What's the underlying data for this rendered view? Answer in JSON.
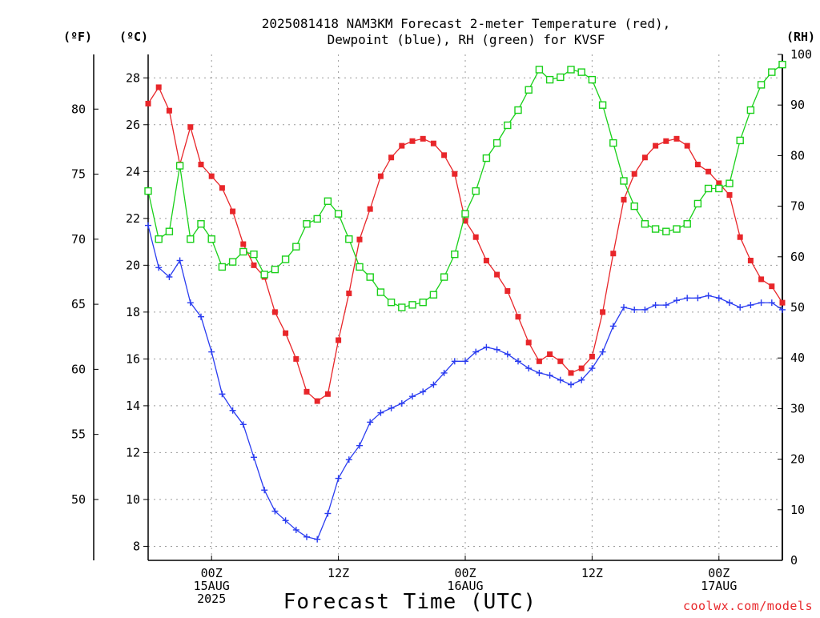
{
  "chart_data": {
    "type": "line",
    "title_lines": [
      "2025081418 NAM3KM Forecast 2-meter Temperature (red),",
      "Dewpoint (blue), RH (green) for KVSF"
    ],
    "xlabel": "Forecast Time (UTC)",
    "left_outer_unit": "(ºF)",
    "left_inner_unit": "(ºC)",
    "right_unit": "(RH)",
    "credit": "coolwx.com/models",
    "x_axis": {
      "range_hours": [
        -6,
        54
      ],
      "ticks": [
        {
          "hour": 0,
          "lines": [
            "00Z",
            "15AUG",
            "2025"
          ]
        },
        {
          "hour": 12,
          "lines": [
            "12Z"
          ]
        },
        {
          "hour": 24,
          "lines": [
            "00Z",
            "16AUG"
          ]
        },
        {
          "hour": 36,
          "lines": [
            "12Z"
          ]
        },
        {
          "hour": 48,
          "lines": [
            "00Z",
            "17AUG"
          ]
        }
      ]
    },
    "y_celsius": {
      "range": [
        7.4,
        29.0
      ],
      "ticks": [
        8,
        10,
        12,
        14,
        16,
        18,
        20,
        22,
        24,
        26,
        28
      ]
    },
    "y_fahrenheit": {
      "ticks": [
        50,
        55,
        60,
        65,
        70,
        75,
        80
      ]
    },
    "y_rh": {
      "range": [
        0,
        100
      ],
      "ticks": [
        0,
        10,
        20,
        30,
        40,
        50,
        60,
        70,
        80,
        90,
        100
      ]
    },
    "grid": true,
    "series": [
      {
        "name": "Temperature",
        "axis": "celsius",
        "color": "#e8262a",
        "marker": "filled-square",
        "x": [
          -6,
          -5,
          -4,
          -3,
          -2,
          -1,
          0,
          1,
          2,
          3,
          4,
          5,
          6,
          7,
          8,
          9,
          10,
          11,
          12,
          13,
          14,
          15,
          16,
          17,
          18,
          19,
          20,
          21,
          22,
          23,
          24,
          25,
          26,
          27,
          28,
          29,
          30,
          31,
          32,
          33,
          34,
          35,
          36,
          37,
          38,
          39,
          40,
          41,
          42,
          43,
          44,
          45,
          46,
          47,
          48,
          49,
          50,
          51,
          52,
          53,
          54
        ],
        "values": [
          26.9,
          27.6,
          26.6,
          24.3,
          25.9,
          24.3,
          23.8,
          23.3,
          22.3,
          20.9,
          20.0,
          19.5,
          18.0,
          17.1,
          16.0,
          14.6,
          14.2,
          14.5,
          16.8,
          18.8,
          21.1,
          22.4,
          23.8,
          24.6,
          25.1,
          25.3,
          25.4,
          25.2,
          24.7,
          23.9,
          21.9,
          21.2,
          20.2,
          19.6,
          18.9,
          17.8,
          16.7,
          15.9,
          16.2,
          15.9,
          15.4,
          15.6,
          16.1,
          18.0,
          20.5,
          22.8,
          23.9,
          24.6,
          25.1,
          25.3,
          25.4,
          25.1,
          24.3,
          24.0,
          23.5,
          23.0,
          21.2,
          20.2,
          19.4,
          19.1,
          18.4
        ]
      },
      {
        "name": "Dewpoint",
        "axis": "celsius",
        "color": "#2a3cf0",
        "marker": "plus",
        "x": [
          -6,
          -5,
          -4,
          -3,
          -2,
          -1,
          0,
          1,
          2,
          3,
          4,
          5,
          6,
          7,
          8,
          9,
          10,
          11,
          12,
          13,
          14,
          15,
          16,
          17,
          18,
          19,
          20,
          21,
          22,
          23,
          24,
          25,
          26,
          27,
          28,
          29,
          30,
          31,
          32,
          33,
          34,
          35,
          36,
          37,
          38,
          39,
          40,
          41,
          42,
          43,
          44,
          45,
          46,
          47,
          48,
          49,
          50,
          51,
          52,
          53,
          54
        ],
        "values": [
          21.7,
          19.9,
          19.5,
          20.2,
          18.4,
          17.8,
          16.3,
          14.5,
          13.8,
          13.2,
          11.8,
          10.4,
          9.5,
          9.1,
          8.7,
          8.4,
          8.3,
          9.4,
          10.9,
          11.7,
          12.3,
          13.3,
          13.7,
          13.9,
          14.1,
          14.4,
          14.6,
          14.9,
          15.4,
          15.9,
          15.9,
          16.3,
          16.5,
          16.4,
          16.2,
          15.9,
          15.6,
          15.4,
          15.3,
          15.1,
          14.9,
          15.1,
          15.6,
          16.3,
          17.4,
          18.2,
          18.1,
          18.1,
          18.3,
          18.3,
          18.5,
          18.6,
          18.6,
          18.7,
          18.6,
          18.4,
          18.2,
          18.3,
          18.4,
          18.4,
          18.1
        ]
      },
      {
        "name": "RH",
        "axis": "rh",
        "color": "#1ad01a",
        "marker": "open-square",
        "x": [
          -6,
          -5,
          -4,
          -3,
          -2,
          -1,
          0,
          1,
          2,
          3,
          4,
          5,
          6,
          7,
          8,
          9,
          10,
          11,
          12,
          13,
          14,
          15,
          16,
          17,
          18,
          19,
          20,
          21,
          22,
          23,
          24,
          25,
          26,
          27,
          28,
          29,
          30,
          31,
          32,
          33,
          34,
          35,
          36,
          37,
          38,
          39,
          40,
          41,
          42,
          43,
          44,
          45,
          46,
          47,
          48,
          49,
          50,
          51,
          52,
          53,
          54
        ],
        "values": [
          73,
          63.5,
          65,
          78,
          63.5,
          66.5,
          63.5,
          58,
          59,
          61,
          60.5,
          56.5,
          57.5,
          59.5,
          62,
          66.5,
          67.5,
          71,
          68.5,
          63.5,
          58,
          56,
          53,
          51,
          50,
          50.5,
          51,
          52.5,
          56,
          60.5,
          68.5,
          73,
          79.5,
          82.5,
          86,
          89,
          93,
          97,
          95,
          95.5,
          97,
          96.5,
          95,
          90,
          82.5,
          75,
          70,
          66.5,
          65.5,
          65,
          65.5,
          66.5,
          70.5,
          73.5,
          73.5,
          74.5,
          83,
          89,
          94,
          96.5,
          98
        ]
      }
    ]
  }
}
